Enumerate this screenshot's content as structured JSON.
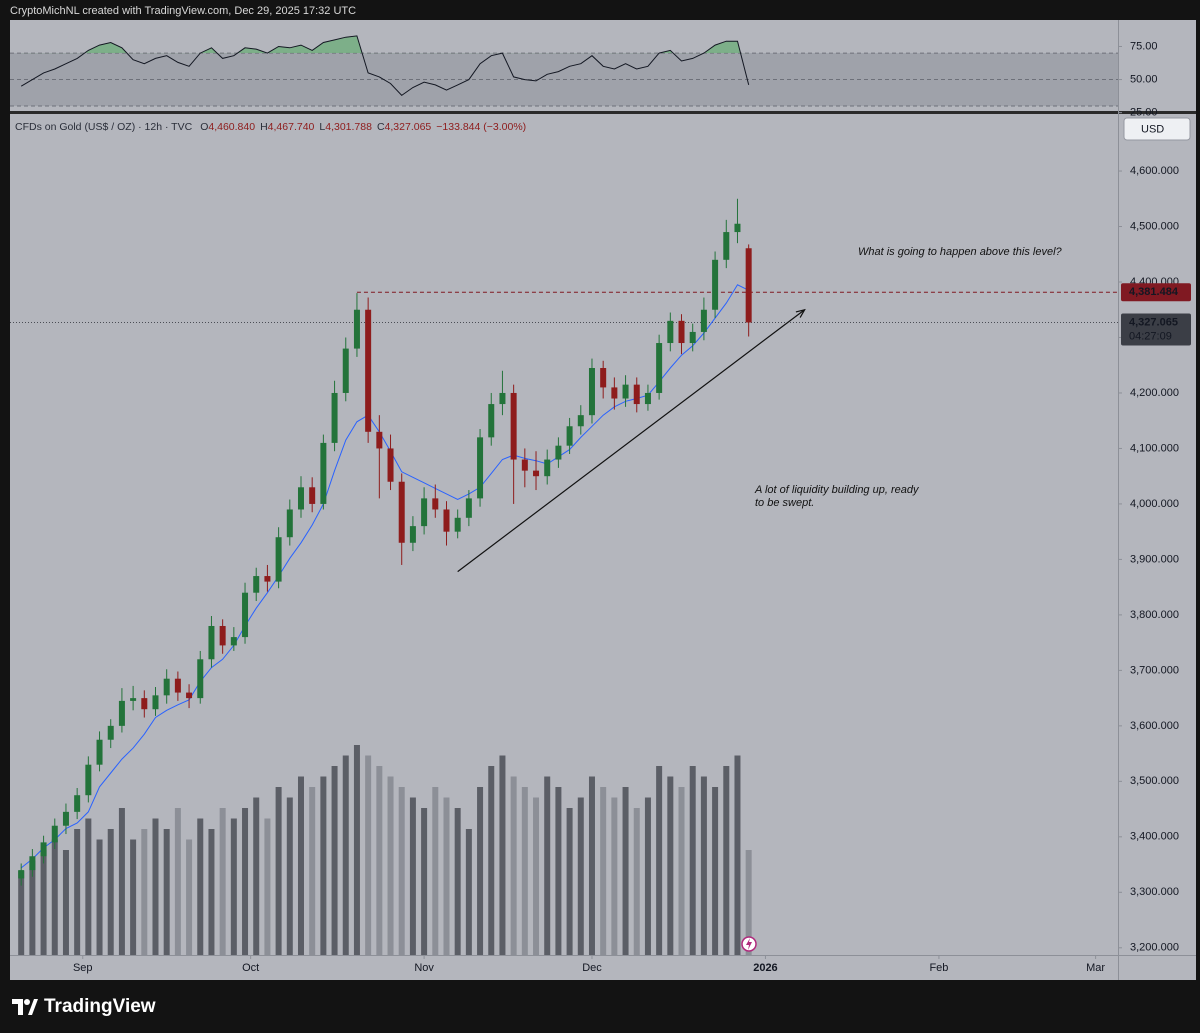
{
  "header": {
    "attribution": "CryptoMichNL created with TradingView.com, Dec 29, 2025 17:32 UTC"
  },
  "chart_data": [
    {
      "type": "candlestick",
      "symbol": "CFDs on Gold (US$ / OZ) · 12h · TVC",
      "ohlc_legend": [
        {
          "label": "O",
          "value": "4,460.840"
        },
        {
          "label": "H",
          "value": "4,467.740"
        },
        {
          "label": "L",
          "value": "4,301.788"
        },
        {
          "label": "C",
          "value": "4,327.065"
        }
      ],
      "change": "−133.844 (−3.00%)",
      "currency": "USD",
      "x": [
        -11,
        -9,
        -7,
        -5,
        -3,
        -1,
        1,
        3,
        5,
        7,
        9,
        11,
        13,
        15,
        17,
        19,
        21,
        23,
        25,
        27,
        29,
        31,
        33,
        35,
        37,
        39,
        41,
        43,
        45,
        47,
        49,
        51,
        53,
        55,
        57,
        59,
        61,
        63,
        65,
        67,
        69,
        71,
        73,
        75,
        77,
        79,
        81,
        83,
        85,
        87,
        89,
        91,
        93,
        95,
        97,
        99,
        101,
        103,
        105,
        107,
        109,
        111,
        113,
        115,
        117,
        119
      ],
      "open": [
        3325,
        3340,
        3365,
        3390,
        3420,
        3445,
        3475,
        3530,
        3575,
        3600,
        3645,
        3650,
        3630,
        3655,
        3685,
        3660,
        3650,
        3720,
        3780,
        3745,
        3760,
        3840,
        3870,
        3860,
        3940,
        3990,
        4030,
        4000,
        4110,
        4200,
        4280,
        4350,
        4130,
        4100,
        4040,
        3930,
        3960,
        4010,
        3990,
        3950,
        3975,
        4010,
        4120,
        4180,
        4200,
        4080,
        4060,
        4050,
        4080,
        4105,
        4140,
        4160,
        4245,
        4210,
        4190,
        4215,
        4180,
        4200,
        4290,
        4330,
        4290,
        4310,
        4350,
        4440,
        4490,
        4460.84
      ],
      "high": [
        3352,
        3378,
        3402,
        3433,
        3460,
        3488,
        3545,
        3590,
        3612,
        3668,
        3672,
        3664,
        3670,
        3702,
        3698,
        3675,
        3735,
        3798,
        3792,
        3778,
        3858,
        3885,
        3890,
        3958,
        4008,
        4050,
        4048,
        4125,
        4222,
        4300,
        4380,
        4372,
        4160,
        4125,
        4055,
        3978,
        4030,
        4035,
        4005,
        3990,
        4025,
        4135,
        4200,
        4240,
        4215,
        4100,
        4095,
        4098,
        4120,
        4155,
        4178,
        4262,
        4258,
        4228,
        4232,
        4228,
        4215,
        4305,
        4345,
        4342,
        4325,
        4372,
        4455,
        4512,
        4550,
        4467.74
      ],
      "low": [
        3312,
        3328,
        3352,
        3378,
        3405,
        3432,
        3462,
        3518,
        3560,
        3588,
        3628,
        3615,
        3618,
        3640,
        3645,
        3632,
        3640,
        3705,
        3730,
        3735,
        3748,
        3825,
        3842,
        3848,
        3925,
        3975,
        3985,
        3990,
        4095,
        4185,
        4265,
        4110,
        4010,
        4025,
        3890,
        3915,
        3945,
        3975,
        3925,
        3938,
        3960,
        3995,
        4105,
        4160,
        4000,
        4030,
        4025,
        4035,
        4065,
        4090,
        4125,
        4145,
        4190,
        4170,
        4175,
        4165,
        4168,
        4188,
        4275,
        4270,
        4275,
        4295,
        4335,
        4425,
        4470,
        4301.788
      ],
      "close": [
        3340,
        3365,
        3390,
        3420,
        3445,
        3475,
        3530,
        3575,
        3600,
        3645,
        3650,
        3630,
        3655,
        3685,
        3660,
        3650,
        3720,
        3780,
        3745,
        3760,
        3840,
        3870,
        3860,
        3940,
        3990,
        4030,
        4000,
        4110,
        4200,
        4280,
        4350,
        4130,
        4100,
        4040,
        3930,
        3960,
        4010,
        3990,
        3950,
        3975,
        4010,
        4120,
        4180,
        4200,
        4080,
        4060,
        4050,
        4080,
        4105,
        4140,
        4160,
        4245,
        4210,
        4190,
        4215,
        4180,
        4200,
        4290,
        4330,
        4290,
        4310,
        4350,
        4440,
        4490,
        4505,
        4327.065
      ],
      "volume": [
        40,
        45,
        50,
        55,
        50,
        60,
        65,
        55,
        60,
        70,
        55,
        60,
        65,
        60,
        70,
        55,
        65,
        60,
        70,
        65,
        70,
        75,
        65,
        80,
        75,
        85,
        80,
        85,
        90,
        95,
        100,
        95,
        90,
        85,
        80,
        75,
        70,
        80,
        75,
        70,
        60,
        80,
        90,
        95,
        85,
        80,
        75,
        85,
        80,
        70,
        75,
        85,
        80,
        75,
        80,
        70,
        75,
        90,
        85,
        80,
        90,
        85,
        80,
        90,
        95,
        50
      ],
      "volume_lim": [
        0,
        100
      ],
      "ma": {
        "color": "#2962ff",
        "values": [
          3344,
          3360,
          3380,
          3395,
          3415,
          3425,
          3445,
          3490,
          3515,
          3540,
          3560,
          3585,
          3615,
          3628,
          3638,
          3647,
          3680,
          3705,
          3720,
          3745,
          3780,
          3812,
          3840,
          3870,
          3902,
          3930,
          3962,
          4000,
          4060,
          4115,
          4148,
          4160,
          4130,
          4095,
          4058,
          4048,
          4038,
          4028,
          4018,
          4008,
          4018,
          4030,
          4055,
          4080,
          4088,
          4082,
          4078,
          4072,
          4085,
          4098,
          4120,
          4140,
          4160,
          4175,
          4185,
          4190,
          4196,
          4220,
          4245,
          4268,
          4285,
          4308,
          4335,
          4362,
          4395,
          4385
        ]
      },
      "up_color": "#23733a",
      "down_color": "#8e1c1c",
      "xlim": [
        -13,
        185
      ],
      "xticks": [
        {
          "value": 0,
          "label": "Sep"
        },
        {
          "value": 30,
          "label": "Oct"
        },
        {
          "value": 61,
          "label": "Nov"
        },
        {
          "value": 91,
          "label": "Dec"
        },
        {
          "value": 122,
          "label": "2026"
        },
        {
          "value": 153,
          "label": "Feb"
        },
        {
          "value": 181,
          "label": "Mar"
        }
      ],
      "ylim": [
        3187,
        4701
      ],
      "yticks": [
        {
          "value": 3200,
          "label": "3,200.000"
        },
        {
          "value": 3300,
          "label": "3,300.000"
        },
        {
          "value": 3400,
          "label": "3,400.000"
        },
        {
          "value": 3500,
          "label": "3,500.000"
        },
        {
          "value": 3600,
          "label": "3,600.000"
        },
        {
          "value": 3700,
          "label": "3,700.000"
        },
        {
          "value": 3800,
          "label": "3,800.000"
        },
        {
          "value": 3900,
          "label": "3,900.000"
        },
        {
          "value": 4000,
          "label": "4,000.000"
        },
        {
          "value": 4100,
          "label": "4,100.000"
        },
        {
          "value": 4200,
          "label": "4,200.000"
        },
        {
          "value": 4300,
          "label": "4,300.000"
        },
        {
          "value": 4400,
          "label": "4,400.000"
        },
        {
          "value": 4500,
          "label": "4,500.000"
        },
        {
          "value": 4600,
          "label": "4,600.000"
        }
      ],
      "grid": false,
      "price_line": {
        "value": 4381.484,
        "label": "4,381.484",
        "color": "#801922"
      },
      "last_price": {
        "value": 4327.065,
        "label": "4,327.065",
        "countdown": "04:27:09"
      },
      "trendline": {
        "x": [
          67,
          129
        ],
        "y": [
          3878,
          4350
        ]
      },
      "annotations": [
        [
          "What is going to happen above this level?"
        ],
        [
          "A lot of liquidity building up, ready",
          "to be swept."
        ]
      ]
    },
    {
      "type": "line",
      "values": [
        45,
        50,
        55,
        58,
        62,
        66,
        72,
        76,
        78,
        74,
        65,
        62,
        66,
        68,
        63,
        60,
        70,
        74,
        66,
        68,
        74,
        73,
        70,
        75,
        74,
        76,
        72,
        78,
        80,
        82,
        83,
        55,
        52,
        47,
        38,
        44,
        48,
        46,
        42,
        46,
        50,
        62,
        68,
        70,
        52,
        50,
        49,
        54,
        56,
        60,
        62,
        68,
        60,
        58,
        62,
        58,
        60,
        70,
        72,
        64,
        66,
        70,
        76,
        79,
        79,
        46
      ],
      "color": "#131722",
      "ylim": [
        27,
        95
      ],
      "yticks": [
        {
          "value": 25,
          "label": "25.00"
        },
        {
          "value": 50,
          "label": "50.00"
        },
        {
          "value": 75,
          "label": "75.00"
        }
      ],
      "bands": [
        30,
        50,
        70
      ]
    }
  ],
  "footer": {
    "brand": "TradingView"
  }
}
